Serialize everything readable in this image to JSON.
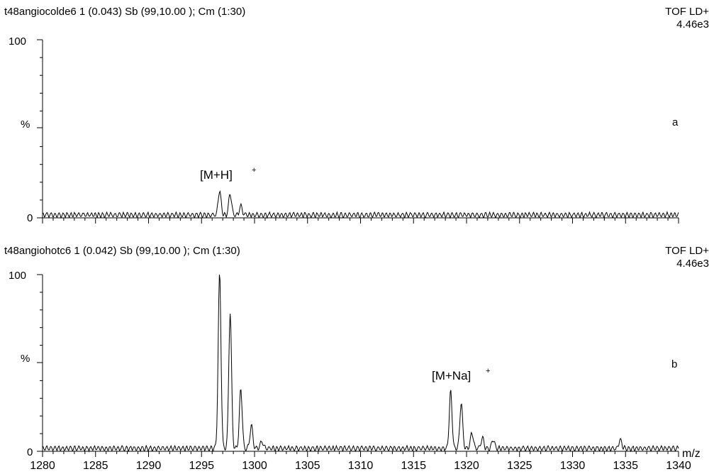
{
  "chart_data": [
    {
      "type": "line",
      "header": "t48angiocolde6  1 (0.043) Sb (99,10.00 ); Cm (1:30)",
      "mode": "TOF LD+",
      "intensity": "4.46e3",
      "panel_letter": "a",
      "y_ticks": [
        "100",
        "%",
        "0"
      ],
      "ylim": [
        0,
        100
      ],
      "xlim": [
        1280,
        1340
      ],
      "x_tick_labels": [],
      "xlabel": "",
      "annotations": [
        {
          "text": "[M+H]",
          "superscript": "+",
          "x": 1297.2,
          "y": 36
        }
      ],
      "noise_level": 3,
      "peaks": [
        {
          "x": 1296.7,
          "y": 14
        },
        {
          "x": 1297.7,
          "y": 12
        },
        {
          "x": 1298.7,
          "y": 5
        }
      ]
    },
    {
      "type": "line",
      "header": "t48angiohotc6  1 (0.042) Sb (99,10.00 ); Cm (1:30)",
      "mode": "TOF LD+",
      "intensity": "4.46e3",
      "panel_letter": "b",
      "y_ticks": [
        "100",
        "%",
        "0"
      ],
      "ylim": [
        0,
        100
      ],
      "xlim": [
        1280,
        1340
      ],
      "x_tick_labels": [
        "1280",
        "1285",
        "1290",
        "1295",
        "1300",
        "1305",
        "1310",
        "1315",
        "1320",
        "1325",
        "1330",
        "1335",
        "1340"
      ],
      "xlabel": "m/z",
      "annotations": [
        {
          "text": "[M+Na]",
          "superscript": "+",
          "x": 1318.8,
          "y": 38
        }
      ],
      "noise_level": 3,
      "peaks": [
        {
          "x": 1296.7,
          "y": 100
        },
        {
          "x": 1297.7,
          "y": 77
        },
        {
          "x": 1298.7,
          "y": 34
        },
        {
          "x": 1299.7,
          "y": 13
        },
        {
          "x": 1300.7,
          "y": 4
        },
        {
          "x": 1318.5,
          "y": 32
        },
        {
          "x": 1319.5,
          "y": 26
        },
        {
          "x": 1320.5,
          "y": 9
        },
        {
          "x": 1321.5,
          "y": 6
        },
        {
          "x": 1322.5,
          "y": 5
        },
        {
          "x": 1334.5,
          "y": 5
        }
      ]
    }
  ]
}
